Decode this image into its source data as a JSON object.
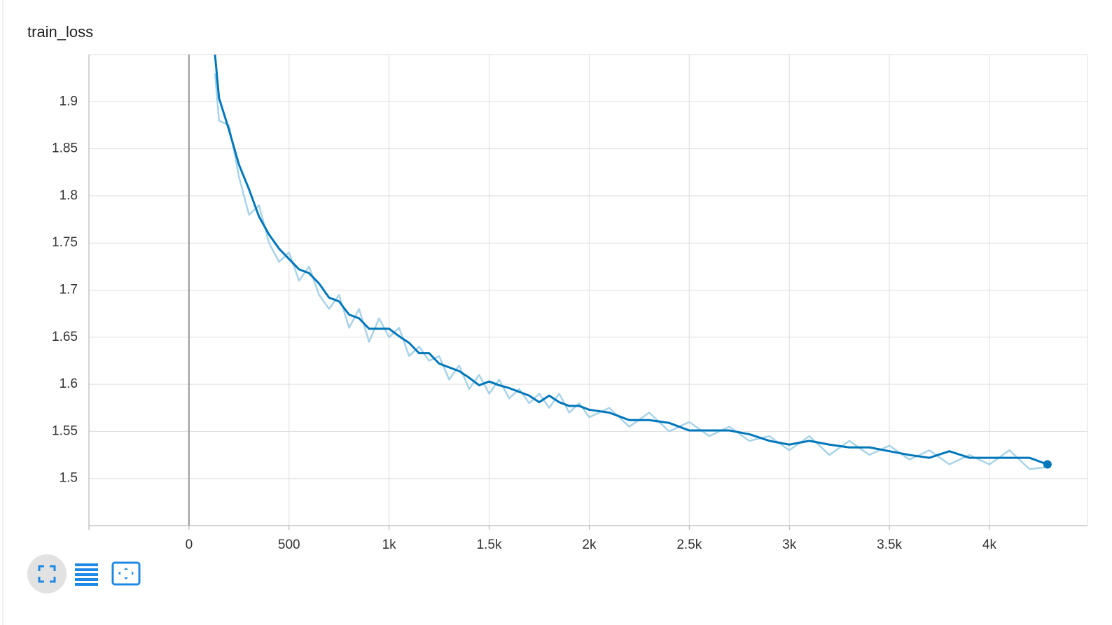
{
  "chart_data": {
    "type": "line",
    "title": "train_loss",
    "x": [
      130,
      150,
      200,
      250,
      300,
      350,
      400,
      450,
      500,
      550,
      600,
      650,
      700,
      750,
      800,
      850,
      900,
      950,
      1000,
      1050,
      1100,
      1150,
      1200,
      1250,
      1300,
      1350,
      1400,
      1450,
      1500,
      1550,
      1600,
      1650,
      1700,
      1750,
      1800,
      1850,
      1900,
      1950,
      2000,
      2100,
      2200,
      2300,
      2400,
      2500,
      2600,
      2700,
      2800,
      2900,
      3000,
      3100,
      3200,
      3300,
      3400,
      3500,
      3600,
      3700,
      3800,
      3900,
      4000,
      4100,
      4200,
      4290
    ],
    "series": [
      {
        "color": "#a9d3e8",
        "values": [
          1.93,
          1.88,
          1.875,
          1.82,
          1.78,
          1.79,
          1.75,
          1.73,
          1.74,
          1.71,
          1.725,
          1.695,
          1.68,
          1.695,
          1.66,
          1.68,
          1.645,
          1.67,
          1.65,
          1.66,
          1.63,
          1.64,
          1.625,
          1.63,
          1.605,
          1.62,
          1.595,
          1.61,
          1.59,
          1.605,
          1.585,
          1.595,
          1.58,
          1.59,
          1.575,
          1.59,
          1.57,
          1.58,
          1.565,
          1.575,
          1.555,
          1.57,
          1.55,
          1.56,
          1.545,
          1.555,
          1.54,
          1.545,
          1.53,
          1.545,
          1.525,
          1.54,
          1.525,
          1.535,
          1.52,
          1.53,
          1.515,
          1.525,
          1.515,
          1.53,
          1.51,
          1.512
        ]
      },
      {
        "color": "#0077bb",
        "values": [
          1.95,
          1.904,
          1.87,
          1.833,
          1.807,
          1.778,
          1.759,
          1.744,
          1.733,
          1.722,
          1.718,
          1.707,
          1.692,
          1.688,
          1.674,
          1.67,
          1.659,
          1.659,
          1.659,
          1.651,
          1.644,
          1.633,
          1.633,
          1.622,
          1.618,
          1.614,
          1.607,
          1.599,
          1.603,
          1.599,
          1.596,
          1.592,
          1.588,
          1.581,
          1.588,
          1.581,
          1.577,
          1.577,
          1.573,
          1.57,
          1.562,
          1.562,
          1.559,
          1.551,
          1.551,
          1.551,
          1.547,
          1.54,
          1.536,
          1.54,
          1.536,
          1.533,
          1.533,
          1.529,
          1.525,
          1.522,
          1.529,
          1.522,
          1.522,
          1.522,
          1.522,
          1.515
        ]
      }
    ],
    "xlim": [
      -500,
      4490
    ],
    "ylim": [
      1.45,
      1.95
    ],
    "xticks": [
      0,
      500,
      {
        "value": 1000,
        "label": "1k"
      },
      {
        "value": 1500,
        "label": "1.5k"
      },
      {
        "value": 2000,
        "label": "2k"
      },
      {
        "value": 2500,
        "label": "2.5k"
      },
      {
        "value": 3000,
        "label": "3k"
      },
      {
        "value": 3500,
        "label": "3.5k"
      },
      {
        "value": 4000,
        "label": "4k"
      }
    ],
    "yticks": [
      1.5,
      1.55,
      1.6,
      1.65,
      1.7,
      1.75,
      1.8,
      1.85,
      1.9
    ],
    "grid": true
  }
}
